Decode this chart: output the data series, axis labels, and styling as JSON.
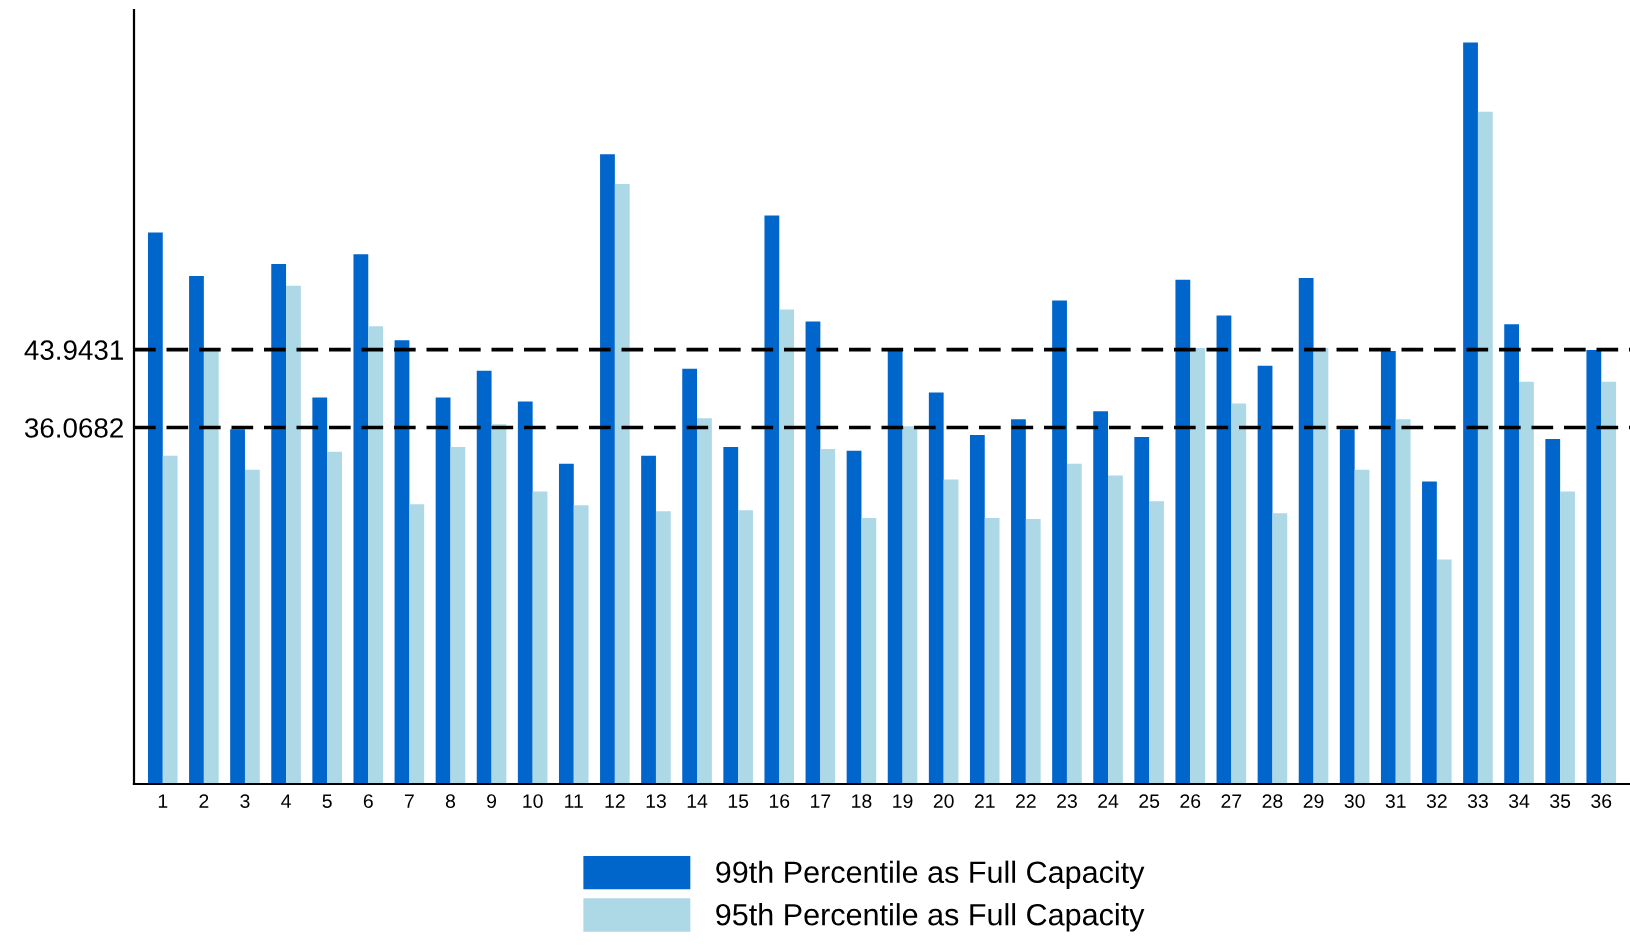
{
  "chart_data": {
    "type": "bar",
    "categories": [
      "1",
      "2",
      "3",
      "4",
      "5",
      "6",
      "7",
      "8",
      "9",
      "10",
      "11",
      "12",
      "13",
      "14",
      "15",
      "16",
      "17",
      "18",
      "19",
      "20",
      "21",
      "22",
      "23",
      "24",
      "25",
      "26",
      "27",
      "28",
      "29",
      "30",
      "31",
      "32",
      "33",
      "34",
      "35",
      "36"
    ],
    "series": [
      {
        "name": "99th Percentile as Full Capacity",
        "color": "#0066cc",
        "values": [
          55.8,
          51.4,
          35.9,
          52.6,
          39.1,
          53.6,
          44.9,
          39.1,
          41.8,
          38.7,
          32.4,
          63.7,
          33.2,
          42.0,
          34.1,
          57.5,
          46.8,
          33.7,
          44.0,
          39.6,
          35.3,
          36.9,
          48.9,
          37.7,
          35.1,
          51.0,
          47.4,
          42.3,
          51.2,
          35.9,
          43.8,
          30.6,
          75.0,
          46.5,
          34.9,
          43.9
        ]
      },
      {
        "name": "95th Percentile as Full Capacity",
        "color": "#add8e6",
        "values": [
          33.2,
          43.9,
          31.8,
          50.4,
          33.6,
          46.3,
          28.3,
          34.1,
          36.4,
          29.6,
          28.2,
          60.7,
          27.6,
          37.0,
          27.7,
          48.0,
          33.9,
          26.9,
          36.2,
          30.8,
          26.9,
          26.8,
          32.4,
          31.2,
          28.6,
          44.1,
          38.5,
          27.4,
          44.1,
          31.8,
          36.9,
          22.7,
          68.0,
          40.7,
          29.6,
          40.7
        ]
      }
    ],
    "ylim": [
      0,
      78.3
    ],
    "yticks": [
      36.0682,
      43.9431
    ],
    "ref_lines": [
      {
        "axis": "y",
        "value": 36.0682,
        "color": "#000000",
        "line_style": "dashed"
      },
      {
        "axis": "y",
        "value": 43.9431,
        "color": "#000000",
        "line_style": "dashed"
      }
    ],
    "grid": false,
    "legend": "bottom"
  }
}
